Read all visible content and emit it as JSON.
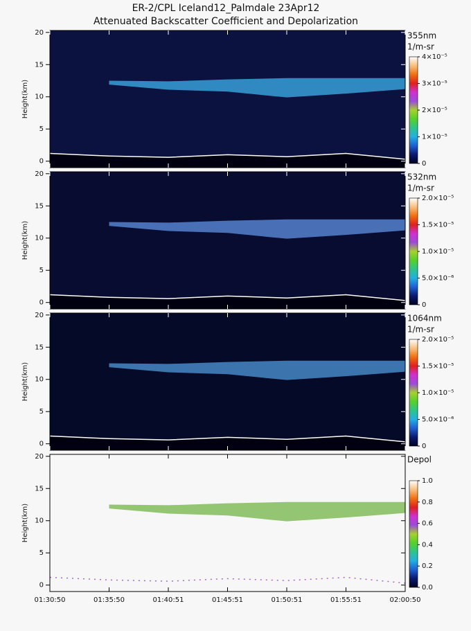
{
  "title": "ER-2/CPL Iceland12_Palmdale 23Apr12",
  "subtitle": "Attenuated Backscatter Coefficient and Depolarization",
  "categories": [
    "01:30:50",
    "01:35:50",
    "01:40:51",
    "01:45:51",
    "01:50:51",
    "01:55:51",
    "02:00:50"
  ],
  "colormap": [
    "#000020",
    "#0a1a6e",
    "#1f5fd0",
    "#22b0e0",
    "#2ec48a",
    "#55d02a",
    "#a8d030",
    "#9a4cd8",
    "#d030d0",
    "#e02020",
    "#f07010",
    "#f8c080",
    "#ffffff"
  ],
  "chart_data": [
    {
      "type": "heatmap",
      "ylabel": "Height(km)",
      "ylim": [
        -1,
        20.3
      ],
      "yticks": [
        0,
        5,
        10,
        15,
        20
      ],
      "channel": "355nm",
      "units": "1/m-sr",
      "background": "#0b1240",
      "cloud_color": "#3aa8e0",
      "clim": [
        0,
        4e-05
      ],
      "cticks": [
        0,
        {
          "value": 1e-05,
          "label": "1×10⁻⁵"
        },
        {
          "value": 2e-05,
          "label": "2×10⁻⁵"
        },
        {
          "value": 3e-05,
          "label": "3×10⁻⁵"
        },
        {
          "value": 4e-05,
          "label": "4×10⁻⁵"
        }
      ],
      "surface": [
        1.2,
        0.8,
        0.6,
        1.0,
        0.7,
        1.2,
        0.3
      ],
      "cloud_top": [
        null,
        12.5,
        12.4,
        12.7,
        12.9,
        12.9,
        12.9
      ],
      "cloud_base": [
        null,
        11.9,
        11.1,
        10.8,
        9.9,
        10.5,
        11.2
      ]
    },
    {
      "type": "heatmap",
      "ylabel": "Height(km)",
      "ylim": [
        -1,
        20.3
      ],
      "yticks": [
        0,
        5,
        10,
        15,
        20
      ],
      "channel": "532nm",
      "units": "1/m-sr",
      "background": "#070c30",
      "cloud_color": "#5a8ad8",
      "clim": [
        0,
        2e-05
      ],
      "cticks": [
        0,
        {
          "value": 5e-06,
          "label": "5.0×10⁻⁶"
        },
        {
          "value": 1e-05,
          "label": "1.0×10⁻⁵"
        },
        {
          "value": 1.5e-05,
          "label": "1.5×10⁻⁵"
        },
        {
          "value": 2e-05,
          "label": "2.0×10⁻⁵"
        }
      ],
      "surface": [
        1.2,
        0.8,
        0.6,
        1.0,
        0.7,
        1.2,
        0.3
      ],
      "cloud_top": [
        null,
        12.5,
        12.4,
        12.7,
        12.9,
        12.9,
        12.9
      ],
      "cloud_base": [
        null,
        11.9,
        11.1,
        10.8,
        9.9,
        10.5,
        11.2
      ]
    },
    {
      "type": "heatmap",
      "ylabel": "Height(km)",
      "ylim": [
        -1,
        20.3
      ],
      "yticks": [
        0,
        5,
        10,
        15,
        20
      ],
      "channel": "1064nm",
      "units": "1/m-sr",
      "background": "#050a28",
      "cloud_color": "#4a90d0",
      "clim": [
        0,
        2e-05
      ],
      "cticks": [
        0,
        {
          "value": 5e-06,
          "label": "5.0×10⁻⁶"
        },
        {
          "value": 1e-05,
          "label": "1.0×10⁻⁵"
        },
        {
          "value": 1.5e-05,
          "label": "1.5×10⁻⁵"
        },
        {
          "value": 2e-05,
          "label": "2.0×10⁻⁵"
        }
      ],
      "surface": [
        1.2,
        0.8,
        0.6,
        1.0,
        0.7,
        1.2,
        0.3
      ],
      "cloud_top": [
        null,
        12.5,
        12.4,
        12.7,
        12.9,
        12.9,
        12.9
      ],
      "cloud_base": [
        null,
        11.9,
        11.1,
        10.8,
        9.9,
        10.5,
        11.2
      ]
    },
    {
      "type": "heatmap",
      "ylabel": "Height(km)",
      "ylim": [
        -1,
        20.3
      ],
      "yticks": [
        0,
        5,
        10,
        15,
        20
      ],
      "channel": "Depol",
      "background": "#f7f7f7",
      "cloud_color": "#7ab850",
      "clim": [
        0,
        1
      ],
      "cticks": [
        {
          "value": 0,
          "label": "0.0"
        },
        0.2,
        0.4,
        0.6,
        0.8,
        {
          "value": 1,
          "label": "1.0"
        }
      ],
      "surface": [
        1.2,
        0.8,
        0.6,
        1.0,
        0.7,
        1.2,
        0.3
      ],
      "cloud_top": [
        null,
        12.5,
        12.4,
        12.7,
        12.9,
        12.9,
        12.9
      ],
      "cloud_base": [
        null,
        11.9,
        11.1,
        10.8,
        9.9,
        10.5,
        11.2
      ]
    }
  ]
}
